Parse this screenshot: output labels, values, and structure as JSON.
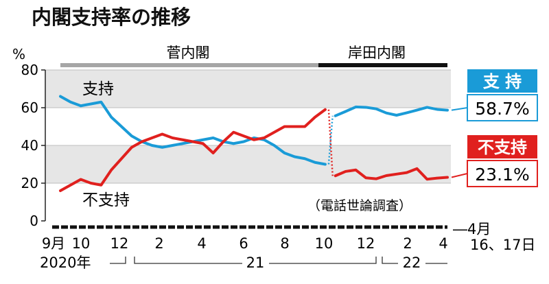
{
  "chart_data": {
    "type": "line",
    "title": "内閣支持率の推移",
    "ylabel": "%",
    "ylim": [
      0,
      80
    ],
    "yticks": [
      "0",
      "20",
      "40",
      "60",
      "80"
    ],
    "survey_note": "（電話世論調査）",
    "grid_bands": [
      [
        20,
        40
      ],
      [
        60,
        80
      ]
    ],
    "eras": [
      {
        "name": "菅内閣",
        "color": "#a6a6a6"
      },
      {
        "name": "岸田内閣",
        "color": "#111111"
      }
    ],
    "x_tick_labels": [
      "9月",
      "10",
      "12",
      "2",
      "4",
      "6",
      "8",
      "10",
      "12",
      "2",
      "4"
    ],
    "latest_date_label": "―4月",
    "latest_date_label2": "16、17日",
    "year_labels": [
      "2020年",
      "21",
      "22"
    ],
    "series": [
      {
        "name": "支持",
        "color": "#1a9bd7",
        "inline_label": "支持",
        "latest_label": "支 持",
        "latest_value_text": "58.7%",
        "segments": [
          [
            66,
            63,
            61,
            62,
            63,
            55,
            50,
            45,
            42,
            40,
            39,
            40,
            41,
            42,
            43,
            44,
            42,
            41,
            42,
            44,
            43,
            40,
            36,
            34,
            33,
            31,
            30
          ],
          [
            55.7,
            58,
            60.4,
            60.2,
            59.4,
            57.2,
            56,
            57.3,
            58.7,
            60.2,
            59.1,
            58.7
          ]
        ]
      },
      {
        "name": "不支持",
        "color": "#e0201e",
        "inline_label": "不支持",
        "latest_label": "不支持",
        "latest_value_text": "23.1%",
        "segments": [
          [
            16,
            19,
            22,
            20,
            19,
            27,
            33,
            39,
            42,
            44,
            46,
            44,
            43,
            42,
            41,
            36,
            42,
            47,
            45,
            43,
            44,
            47,
            50,
            50,
            50,
            55,
            59
          ],
          [
            23.9,
            26.2,
            27,
            22.8,
            22.3,
            24,
            24.8,
            25.6,
            27.7,
            22.1,
            22.7,
            23.1
          ]
        ]
      }
    ]
  }
}
